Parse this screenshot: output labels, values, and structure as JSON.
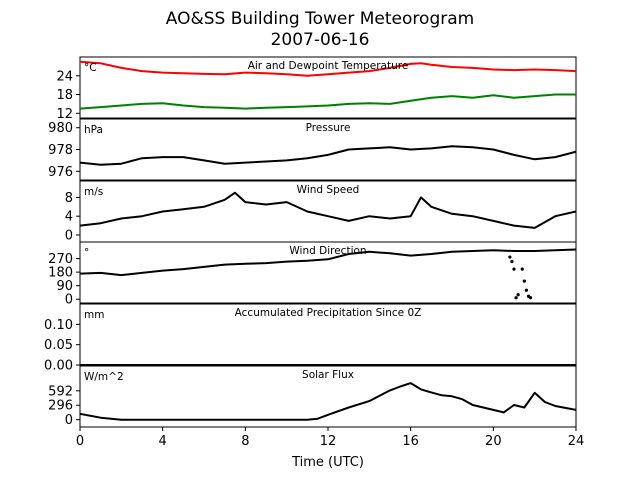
{
  "figure": {
    "title_line1": "AO&SS Building Tower Meteorogram",
    "title_line2": "2007-06-16"
  },
  "chart_data": {
    "type": "line",
    "xlabel": "Time (UTC)",
    "xlim": [
      0,
      24
    ],
    "xticks": [
      0,
      4,
      8,
      12,
      16,
      20,
      24
    ],
    "grid": false,
    "panels": [
      {
        "title": "Air and Dewpoint Temperature",
        "unit": "°C",
        "ylim": [
          10.5,
          30
        ],
        "yticks": [
          12,
          18,
          24
        ],
        "series": [
          {
            "color": "#ff0000",
            "x": [
              0,
              1,
              2,
              3,
              4,
              5,
              6,
              7,
              8,
              9,
              10,
              11,
              12,
              13,
              14,
              15,
              16,
              16.5,
              17,
              18,
              19,
              20,
              21,
              22,
              23,
              24
            ],
            "y": [
              28.5,
              28,
              26.5,
              25.5,
              25,
              24.8,
              24.6,
              24.5,
              25,
              24.8,
              24.5,
              24,
              24.5,
              25,
              25.5,
              26.5,
              27.8,
              28,
              27.5,
              26.8,
              26.5,
              26,
              25.8,
              26,
              25.8,
              25.5
            ]
          },
          {
            "color": "#008000",
            "x": [
              0,
              1,
              2,
              3,
              4,
              5,
              6,
              7,
              8,
              9,
              10,
              11,
              12,
              13,
              14,
              15,
              16,
              17,
              18,
              19,
              20,
              21,
              22,
              23,
              24
            ],
            "y": [
              13.5,
              14,
              14.5,
              15,
              15.2,
              14.5,
              14,
              13.8,
              13.5,
              13.8,
              14,
              14.2,
              14.5,
              15,
              15.2,
              15,
              16,
              17,
              17.5,
              17,
              17.8,
              17,
              17.5,
              18,
              18
            ]
          }
        ]
      },
      {
        "title": "Pressure",
        "unit": "hPa",
        "ylim": [
          975.2,
          980.8
        ],
        "yticks": [
          976,
          978,
          980
        ],
        "series": [
          {
            "color": "#000000",
            "x": [
              0,
              1,
              2,
              3,
              4,
              5,
              6,
              7,
              8,
              9,
              10,
              11,
              12,
              13,
              14,
              15,
              16,
              17,
              18,
              19,
              20,
              21,
              22,
              23,
              24
            ],
            "y": [
              976.8,
              976.6,
              976.7,
              977.2,
              977.3,
              977.3,
              977,
              976.7,
              976.8,
              976.9,
              977,
              977.2,
              977.5,
              978,
              978.1,
              978.2,
              978,
              978.1,
              978.3,
              978.2,
              978,
              977.5,
              977.1,
              977.3,
              977.8
            ]
          }
        ]
      },
      {
        "title": "Wind Speed",
        "unit": "m/s",
        "ylim": [
          -1.5,
          11.5
        ],
        "yticks": [
          0,
          4,
          8
        ],
        "series": [
          {
            "color": "#000000",
            "x": [
              0,
              1,
              2,
              3,
              4,
              5,
              6,
              7,
              7.5,
              8,
              9,
              10,
              11,
              12,
              13,
              14,
              15,
              16,
              16.5,
              17,
              18,
              19,
              20,
              21,
              22,
              23,
              24
            ],
            "y": [
              2,
              2.5,
              3.5,
              4,
              5,
              5.5,
              6,
              7.5,
              9,
              7,
              6.5,
              7,
              5,
              4,
              3,
              4,
              3.5,
              4,
              8,
              6,
              4.5,
              4,
              3,
              2,
              1.5,
              4,
              5
            ]
          }
        ]
      },
      {
        "title": "Wind Direction",
        "unit": "°",
        "ylim": [
          -25,
          380
        ],
        "yticks": [
          0,
          90,
          180,
          270
        ],
        "series": [
          {
            "color": "#000000",
            "x": [
              0,
              1,
              2,
              3,
              4,
              5,
              6,
              7,
              8,
              9,
              10,
              11,
              12,
              13,
              14,
              15,
              16,
              17,
              18,
              19,
              20,
              21,
              22,
              23,
              24
            ],
            "y": [
              170,
              175,
              160,
              175,
              190,
              200,
              215,
              230,
              235,
              240,
              250,
              255,
              265,
              300,
              315,
              305,
              290,
              300,
              315,
              320,
              325,
              320,
              320,
              325,
              330
            ]
          }
        ],
        "scatter": {
          "color": "#000000",
          "x": [
            20.8,
            20.9,
            21.0,
            21.1,
            21.2,
            21.4,
            21.5,
            21.6,
            21.7,
            21.8
          ],
          "y": [
            280,
            250,
            200,
            10,
            30,
            200,
            120,
            60,
            20,
            10
          ]
        }
      },
      {
        "title": "Accumulated Precipitation Since 0Z",
        "unit": "mm",
        "ylim": [
          0,
          0.15
        ],
        "yticks": [
          0.0,
          0.05,
          0.1
        ],
        "yticklabels": [
          "0.00",
          "0.05",
          "0.10"
        ],
        "series": [
          {
            "color": "#000000",
            "x": [
              0,
              24
            ],
            "y": [
              0,
              0
            ]
          }
        ]
      },
      {
        "title": "Solar Flux",
        "unit": "W/m^2",
        "ylim": [
          -150,
          1100
        ],
        "yticks": [
          0,
          296,
          592
        ],
        "series": [
          {
            "color": "#000000",
            "x": [
              0,
              1,
              2,
              3,
              4,
              5,
              6,
              7,
              8,
              9,
              10,
              11,
              11.5,
              12,
              13,
              14,
              15,
              15.5,
              16,
              16.5,
              17,
              17.5,
              18,
              18.5,
              19,
              20,
              20.5,
              21,
              21.5,
              22,
              22.5,
              23,
              24
            ],
            "y": [
              120,
              40,
              0,
              0,
              0,
              0,
              0,
              0,
              0,
              0,
              0,
              0,
              20,
              100,
              250,
              380,
              600,
              680,
              750,
              620,
              560,
              500,
              480,
              420,
              300,
              200,
              150,
              300,
              250,
              550,
              360,
              280,
              200
            ]
          }
        ]
      }
    ]
  }
}
